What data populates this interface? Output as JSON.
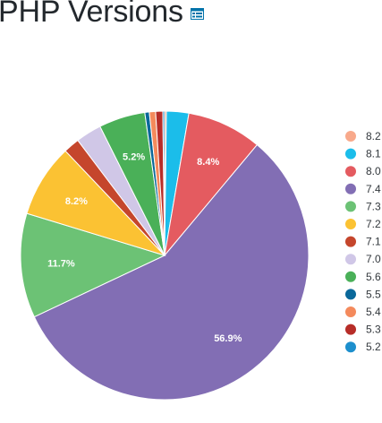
{
  "header": {
    "title": "PHP Versions",
    "table_icon": "table-icon",
    "icon_color": "#0073aa"
  },
  "chart_data": {
    "type": "pie",
    "title": "PHP Versions",
    "legend_position": "right",
    "start_angle_deg": 0,
    "direction": "clockwise",
    "slices": [
      {
        "label": "8.2",
        "value": 0.2,
        "color": "#f8a98b",
        "show_label": false
      },
      {
        "label": "8.1",
        "value": 2.5,
        "color": "#1bbdea",
        "show_label": false
      },
      {
        "label": "8.0",
        "value": 8.4,
        "color": "#e45b60",
        "show_label": true,
        "text": "8.4%"
      },
      {
        "label": "7.4",
        "value": 56.9,
        "color": "#826eb4",
        "show_label": true,
        "text": "56.9%"
      },
      {
        "label": "7.3",
        "value": 11.7,
        "color": "#6cc275",
        "show_label": true,
        "text": "11.7%"
      },
      {
        "label": "7.2",
        "value": 8.2,
        "color": "#fbc233",
        "show_label": true,
        "text": "8.2%"
      },
      {
        "label": "7.1",
        "value": 1.8,
        "color": "#c5462c",
        "show_label": false
      },
      {
        "label": "7.0",
        "value": 2.9,
        "color": "#d0c7e7",
        "show_label": false
      },
      {
        "label": "5.6",
        "value": 5.2,
        "color": "#4ab058",
        "show_label": true,
        "text": "5.2%"
      },
      {
        "label": "5.5",
        "value": 0.5,
        "color": "#0a689a",
        "show_label": false
      },
      {
        "label": "5.4",
        "value": 0.7,
        "color": "#f48a5c",
        "show_label": false
      },
      {
        "label": "5.3",
        "value": 0.8,
        "color": "#b72d28",
        "show_label": false
      },
      {
        "label": "5.2",
        "value": 0.2,
        "color": "#1d8fcd",
        "show_label": false
      }
    ]
  }
}
